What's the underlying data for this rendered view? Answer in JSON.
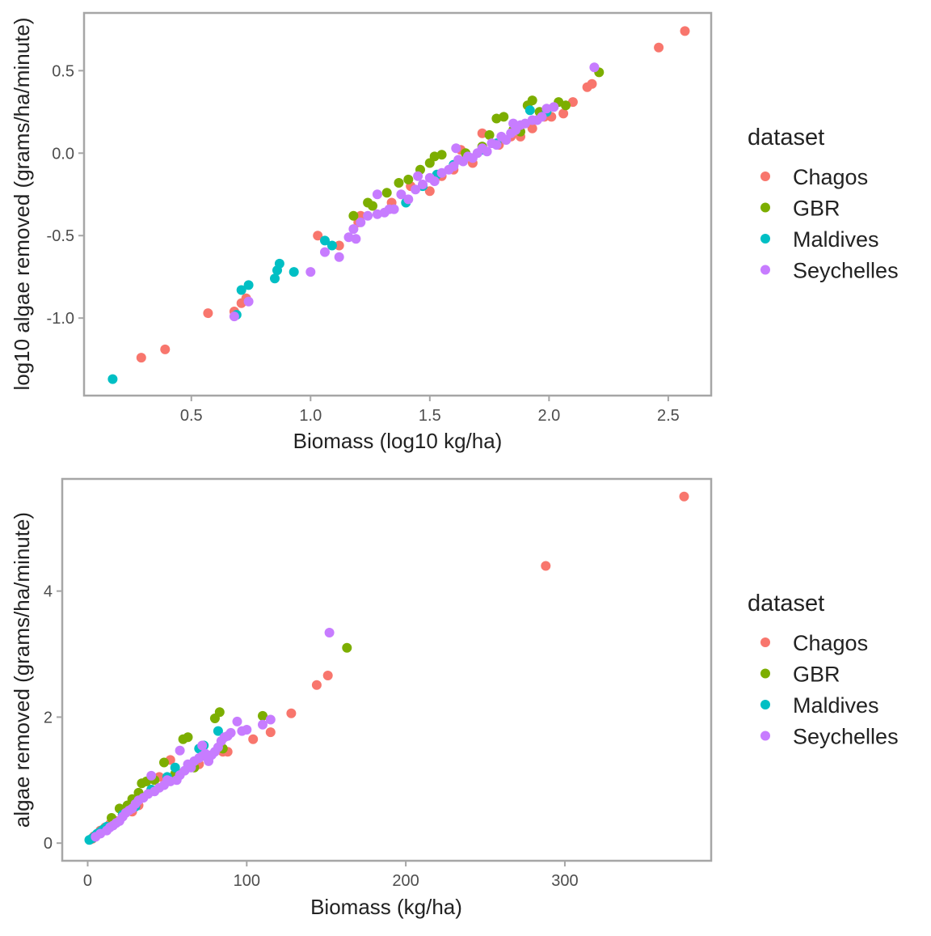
{
  "colors": {
    "Chagos": "#F8766D",
    "GBR": "#7CAE00",
    "Maldives": "#00BFC4",
    "Seychelles": "#C77CFF"
  },
  "chart_data": [
    {
      "type": "scatter",
      "title": "",
      "xlabel": "Biomass (log10 kg/ha)",
      "ylabel": "log10 algae removed (grams/ha/minute)",
      "xlim": [
        0.05,
        2.68
      ],
      "ylim": [
        -1.47,
        0.85
      ],
      "xticks": [
        0.5,
        1.0,
        1.5,
        2.0,
        2.5
      ],
      "xtick_labels": [
        "0.5",
        "1.0",
        "1.5",
        "2.0",
        "2.5"
      ],
      "yticks": [
        -1.0,
        -0.5,
        0.0,
        0.5
      ],
      "ytick_labels": [
        "-1.0",
        "-0.5",
        "0.0",
        "0.5"
      ],
      "grid": false,
      "legend": {
        "title": "dataset",
        "position": "right",
        "entries": [
          "Chagos",
          "GBR",
          "Maldives",
          "Seychelles"
        ]
      },
      "series": [
        {
          "name": "Chagos",
          "points": [
            [
              0.29,
              -1.24
            ],
            [
              0.39,
              -1.19
            ],
            [
              0.57,
              -0.97
            ],
            [
              0.68,
              -0.96
            ],
            [
              0.71,
              -0.91
            ],
            [
              0.73,
              -0.88
            ],
            [
              1.03,
              -0.5
            ],
            [
              1.12,
              -0.56
            ],
            [
              1.2,
              -0.42
            ],
            [
              1.21,
              -0.38
            ],
            [
              1.34,
              -0.3
            ],
            [
              1.42,
              -0.2
            ],
            [
              1.5,
              -0.23
            ],
            [
              1.55,
              -0.14
            ],
            [
              1.6,
              -0.1
            ],
            [
              1.63,
              0.02
            ],
            [
              1.68,
              -0.06
            ],
            [
              1.72,
              0.12
            ],
            [
              1.79,
              0.05
            ],
            [
              1.84,
              0.1
            ],
            [
              1.88,
              0.1
            ],
            [
              1.93,
              0.15
            ],
            [
              1.98,
              0.22
            ],
            [
              2.01,
              0.22
            ],
            [
              2.06,
              0.24
            ],
            [
              2.1,
              0.31
            ],
            [
              2.16,
              0.4
            ],
            [
              2.18,
              0.42
            ],
            [
              2.46,
              0.64
            ],
            [
              2.57,
              0.74
            ]
          ]
        },
        {
          "name": "GBR",
          "points": [
            [
              1.18,
              -0.38
            ],
            [
              1.24,
              -0.3
            ],
            [
              1.26,
              -0.32
            ],
            [
              1.32,
              -0.24
            ],
            [
              1.37,
              -0.18
            ],
            [
              1.41,
              -0.16
            ],
            [
              1.46,
              -0.1
            ],
            [
              1.5,
              -0.06
            ],
            [
              1.52,
              -0.02
            ],
            [
              1.55,
              -0.01
            ],
            [
              1.65,
              0.0
            ],
            [
              1.72,
              0.04
            ],
            [
              1.75,
              0.11
            ],
            [
              1.78,
              0.21
            ],
            [
              1.81,
              0.22
            ],
            [
              1.85,
              0.14
            ],
            [
              1.88,
              0.13
            ],
            [
              1.91,
              0.29
            ],
            [
              1.93,
              0.32
            ],
            [
              1.96,
              0.25
            ],
            [
              2.04,
              0.31
            ],
            [
              2.07,
              0.29
            ],
            [
              2.21,
              0.49
            ]
          ]
        },
        {
          "name": "Maldives",
          "points": [
            [
              0.17,
              -1.37
            ],
            [
              0.69,
              -0.98
            ],
            [
              0.71,
              -0.83
            ],
            [
              0.74,
              -0.8
            ],
            [
              0.85,
              -0.76
            ],
            [
              0.86,
              -0.71
            ],
            [
              0.87,
              -0.67
            ],
            [
              0.93,
              -0.72
            ],
            [
              1.06,
              -0.53
            ],
            [
              1.09,
              -0.56
            ],
            [
              1.4,
              -0.3
            ],
            [
              1.47,
              -0.2
            ],
            [
              1.53,
              -0.13
            ],
            [
              1.6,
              -0.07
            ],
            [
              1.72,
              0.02
            ],
            [
              1.78,
              0.06
            ],
            [
              1.92,
              0.26
            ],
            [
              1.99,
              0.25
            ]
          ]
        },
        {
          "name": "Seychelles",
          "points": [
            [
              0.68,
              -0.99
            ],
            [
              0.74,
              -0.9
            ],
            [
              1.0,
              -0.72
            ],
            [
              1.06,
              -0.6
            ],
            [
              1.12,
              -0.63
            ],
            [
              1.16,
              -0.51
            ],
            [
              1.19,
              -0.52
            ],
            [
              1.18,
              -0.46
            ],
            [
              1.21,
              -0.42
            ],
            [
              1.24,
              -0.38
            ],
            [
              1.28,
              -0.37
            ],
            [
              1.31,
              -0.36
            ],
            [
              1.33,
              -0.34
            ],
            [
              1.35,
              -0.34
            ],
            [
              1.28,
              -0.25
            ],
            [
              1.38,
              -0.25
            ],
            [
              1.41,
              -0.28
            ],
            [
              1.44,
              -0.22
            ],
            [
              1.45,
              -0.14
            ],
            [
              1.47,
              -0.19
            ],
            [
              1.5,
              -0.15
            ],
            [
              1.52,
              -0.17
            ],
            [
              1.55,
              -0.12
            ],
            [
              1.58,
              -0.1
            ],
            [
              1.6,
              -0.08
            ],
            [
              1.62,
              -0.04
            ],
            [
              1.64,
              -0.05
            ],
            [
              1.61,
              0.03
            ],
            [
              1.66,
              -0.02
            ],
            [
              1.68,
              -0.03
            ],
            [
              1.7,
              0.0
            ],
            [
              1.72,
              0.03
            ],
            [
              1.74,
              0.01
            ],
            [
              1.76,
              0.06
            ],
            [
              1.78,
              0.05
            ],
            [
              1.8,
              0.1
            ],
            [
              1.82,
              0.08
            ],
            [
              1.84,
              0.12
            ],
            [
              1.86,
              0.14
            ],
            [
              1.88,
              0.17
            ],
            [
              1.9,
              0.18
            ],
            [
              1.93,
              0.2
            ],
            [
              1.95,
              0.2
            ],
            [
              1.97,
              0.22
            ],
            [
              1.99,
              0.27
            ],
            [
              2.02,
              0.28
            ],
            [
              1.85,
              0.18
            ],
            [
              2.19,
              0.52
            ]
          ]
        }
      ]
    },
    {
      "type": "scatter",
      "title": "",
      "xlabel": "Biomass (kg/ha)",
      "ylabel": "algae removed (grams/ha/minute)",
      "xlim": [
        -16,
        392
      ],
      "ylim": [
        -0.28,
        5.78
      ],
      "xticks": [
        0,
        100,
        200,
        300
      ],
      "xtick_labels": [
        "0",
        "100",
        "200",
        "300"
      ],
      "yticks": [
        0,
        2,
        4
      ],
      "ytick_labels": [
        "0",
        "2",
        "4"
      ],
      "grid": false,
      "legend": {
        "title": "dataset",
        "position": "right",
        "entries": [
          "Chagos",
          "GBR",
          "Maldives",
          "Seychelles"
        ]
      },
      "series": [
        {
          "name": "Chagos",
          "points": [
            [
              2,
              0.06
            ],
            [
              3,
              0.07
            ],
            [
              4,
              0.11
            ],
            [
              8,
              0.2
            ],
            [
              11,
              0.25
            ],
            [
              14,
              0.3
            ],
            [
              18,
              0.35
            ],
            [
              22,
              0.45
            ],
            [
              28,
              0.5
            ],
            [
              32,
              0.6
            ],
            [
              40,
              0.85
            ],
            [
              45,
              1.05
            ],
            [
              52,
              1.32
            ],
            [
              58,
              1.1
            ],
            [
              70,
              1.25
            ],
            [
              85,
              1.45
            ],
            [
              88,
              1.45
            ],
            [
              104,
              1.65
            ],
            [
              115,
              1.76
            ],
            [
              128,
              2.06
            ],
            [
              144,
              2.51
            ],
            [
              151,
              2.66
            ],
            [
              288,
              4.4
            ],
            [
              375,
              5.5
            ]
          ]
        },
        {
          "name": "GBR",
          "points": [
            [
              15,
              0.4
            ],
            [
              20,
              0.55
            ],
            [
              25,
              0.6
            ],
            [
              28,
              0.7
            ],
            [
              32,
              0.8
            ],
            [
              34,
              0.95
            ],
            [
              37,
              0.98
            ],
            [
              42,
              1.0
            ],
            [
              48,
              1.28
            ],
            [
              55,
              1.1
            ],
            [
              60,
              1.65
            ],
            [
              63,
              1.68
            ],
            [
              67,
              1.2
            ],
            [
              80,
              1.98
            ],
            [
              83,
              2.08
            ],
            [
              85,
              1.5
            ],
            [
              110,
              2.02
            ],
            [
              163,
              3.1
            ]
          ]
        },
        {
          "name": "Maldives",
          "points": [
            [
              1,
              0.05
            ],
            [
              3,
              0.08
            ],
            [
              5,
              0.12
            ],
            [
              6,
              0.15
            ],
            [
              8,
              0.18
            ],
            [
              9,
              0.2
            ],
            [
              10,
              0.22
            ],
            [
              12,
              0.26
            ],
            [
              22,
              0.45
            ],
            [
              30,
              0.58
            ],
            [
              40,
              0.85
            ],
            [
              50,
              1.05
            ],
            [
              55,
              1.2
            ],
            [
              70,
              1.5
            ],
            [
              73,
              1.55
            ],
            [
              82,
              1.78
            ]
          ]
        },
        {
          "name": "Seychelles",
          "points": [
            [
              5,
              0.1
            ],
            [
              8,
              0.15
            ],
            [
              12,
              0.2
            ],
            [
              14,
              0.25
            ],
            [
              16,
              0.28
            ],
            [
              18,
              0.32
            ],
            [
              20,
              0.35
            ],
            [
              22,
              0.42
            ],
            [
              24,
              0.48
            ],
            [
              26,
              0.52
            ],
            [
              28,
              0.55
            ],
            [
              30,
              0.62
            ],
            [
              32,
              0.68
            ],
            [
              35,
              0.72
            ],
            [
              38,
              0.78
            ],
            [
              40,
              1.07
            ],
            [
              42,
              0.82
            ],
            [
              45,
              0.88
            ],
            [
              48,
              0.92
            ],
            [
              50,
              1.0
            ],
            [
              52,
              0.98
            ],
            [
              56,
              1.0
            ],
            [
              58,
              1.08
            ],
            [
              61,
              1.15
            ],
            [
              63,
              1.25
            ],
            [
              65,
              1.2
            ],
            [
              67,
              1.3
            ],
            [
              70,
              1.35
            ],
            [
              72,
              1.38
            ],
            [
              74,
              1.42
            ],
            [
              76,
              1.3
            ],
            [
              78,
              1.4
            ],
            [
              80,
              1.45
            ],
            [
              82,
              1.52
            ],
            [
              84,
              1.62
            ],
            [
              86,
              1.68
            ],
            [
              88,
              1.7
            ],
            [
              90,
              1.75
            ],
            [
              94,
              1.93
            ],
            [
              97,
              1.78
            ],
            [
              100,
              1.8
            ],
            [
              110,
              1.88
            ],
            [
              115,
              1.96
            ],
            [
              152,
              3.34
            ],
            [
              58,
              1.47
            ],
            [
              72,
              1.55
            ]
          ]
        }
      ]
    }
  ]
}
